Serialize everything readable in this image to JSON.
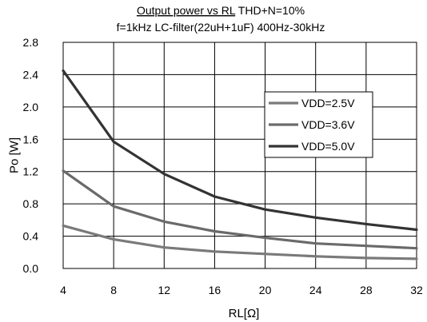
{
  "chart_data": {
    "type": "line",
    "title_underlined": "Output power vs RL",
    "title_rest": " THD+N=10%",
    "subtitle": "f=1kHz LC-filter(22uH+1uF) 400Hz-30kHz",
    "xlabel": "RL[Ω]",
    "ylabel": "Po [W]",
    "xlim": [
      4,
      32
    ],
    "ylim": [
      0,
      2.8
    ],
    "x_ticks": [
      4,
      8,
      12,
      16,
      20,
      24,
      28,
      32
    ],
    "y_ticks": [
      0.0,
      0.4,
      0.8,
      1.2,
      1.6,
      2.0,
      2.4,
      2.8
    ],
    "y_tick_labels": [
      "0.0",
      "0.4",
      "0.8",
      "1.2",
      "1.6",
      "2.0",
      "2.4",
      "2.8"
    ],
    "grid": true,
    "legend_position": "right",
    "series": [
      {
        "name": "VDD=2.5V",
        "color": "#7a7a7a",
        "x": [
          4,
          8,
          12,
          16,
          20,
          24,
          28,
          32
        ],
        "values": [
          0.53,
          0.36,
          0.26,
          0.21,
          0.18,
          0.15,
          0.13,
          0.12
        ]
      },
      {
        "name": "VDD=3.6V",
        "color": "#6a6a6a",
        "x": [
          4,
          8,
          12,
          16,
          20,
          24,
          28,
          32
        ],
        "values": [
          1.21,
          0.77,
          0.58,
          0.46,
          0.38,
          0.31,
          0.28,
          0.25
        ]
      },
      {
        "name": "VDD=5.0V",
        "color": "#333333",
        "x": [
          4,
          8,
          12,
          16,
          20,
          24,
          28,
          32
        ],
        "values": [
          2.45,
          1.57,
          1.17,
          0.89,
          0.73,
          0.63,
          0.55,
          0.48
        ]
      }
    ]
  }
}
